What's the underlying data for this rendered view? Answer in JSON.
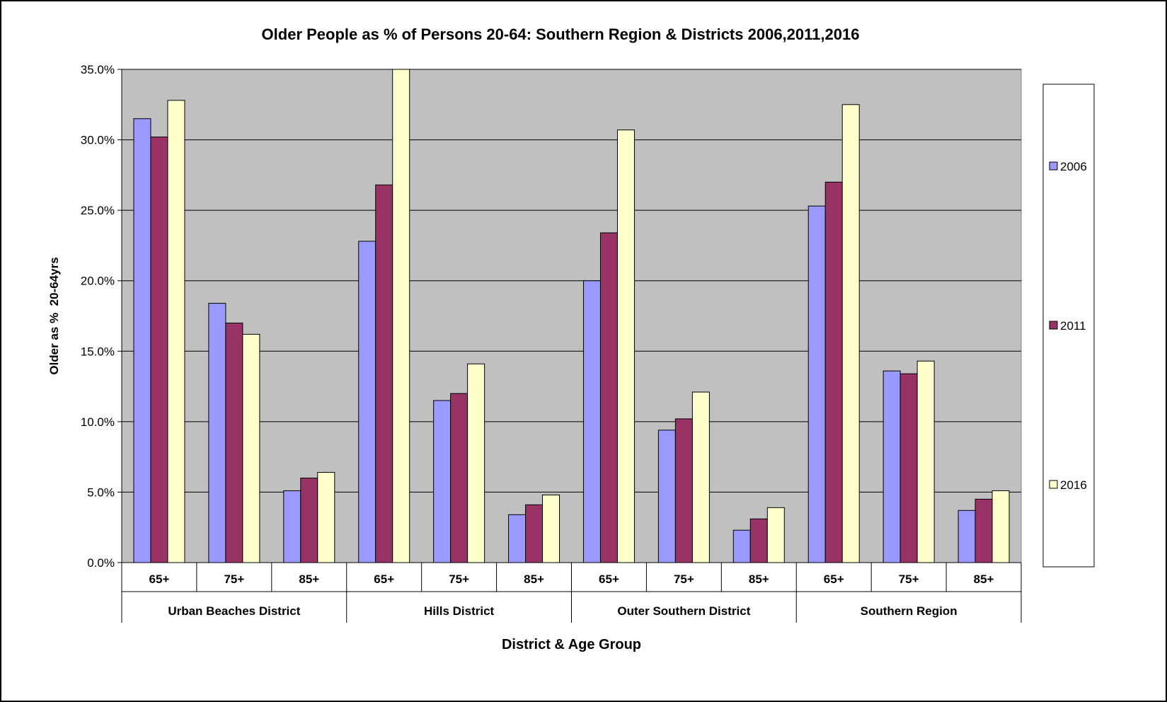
{
  "chart_data": {
    "type": "bar",
    "title": "Older People as % of Persons 20-64: Southern Region & Districts 2006,2011,2016",
    "xlabel": "District & Age Group",
    "ylabel": "Older as %  20-64yrs",
    "ylim": [
      0,
      35
    ],
    "yticks": [
      "0.0%",
      "5.0%",
      "10.0%",
      "15.0%",
      "20.0%",
      "25.0%",
      "30.0%",
      "35.0%"
    ],
    "grid": true,
    "legend": "right",
    "groups": [
      {
        "label": "Urban Beaches District",
        "categories": [
          "65+",
          "75+",
          "85+"
        ]
      },
      {
        "label": "Hills District",
        "categories": [
          "65+",
          "75+",
          "85+"
        ]
      },
      {
        "label": "Outer Southern District",
        "categories": [
          "65+",
          "75+",
          "85+"
        ]
      },
      {
        "label": "Southern Region",
        "categories": [
          "65+",
          "75+",
          "85+"
        ]
      }
    ],
    "categories": [
      "65+",
      "75+",
      "85+",
      "65+",
      "75+",
      "85+",
      "65+",
      "75+",
      "85+",
      "65+",
      "75+",
      "85+"
    ],
    "series": [
      {
        "name": "2006",
        "color": "#9999ff",
        "values": [
          31.5,
          18.4,
          5.1,
          22.8,
          11.5,
          3.4,
          20.0,
          9.4,
          2.3,
          25.3,
          13.6,
          3.7
        ]
      },
      {
        "name": "2011",
        "color": "#993366",
        "values": [
          30.2,
          17.0,
          6.0,
          26.8,
          12.0,
          4.1,
          23.4,
          10.2,
          3.1,
          27.0,
          13.4,
          4.5
        ]
      },
      {
        "name": "2016",
        "color": "#ffffcc",
        "values": [
          32.8,
          16.2,
          6.4,
          35.0,
          14.1,
          4.8,
          30.7,
          12.1,
          3.9,
          32.5,
          14.3,
          5.1
        ]
      }
    ],
    "plot_background": "#c0c0c0"
  }
}
